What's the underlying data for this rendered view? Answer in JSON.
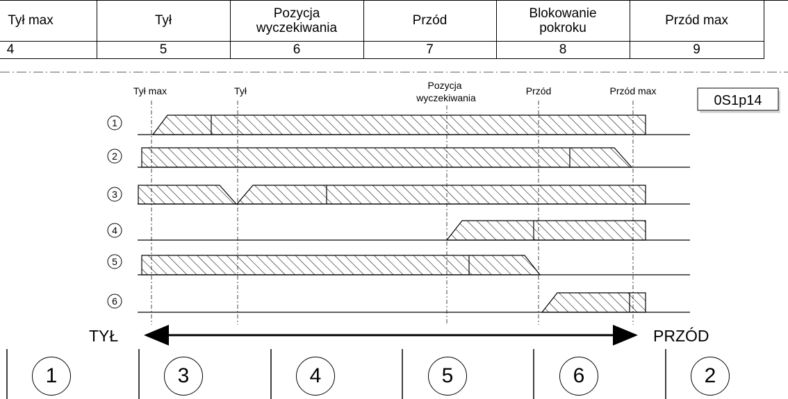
{
  "header_table": {
    "columns": [
      {
        "title": "Tył max",
        "number": "4"
      },
      {
        "title": "Tył",
        "number": "5"
      },
      {
        "title": "Pozycja\nwyczekiwania",
        "number": "6"
      },
      {
        "title": "Przód",
        "number": "7"
      },
      {
        "title": "Blokowanie\npokroku",
        "number": "8"
      },
      {
        "title": "Przód max",
        "number": "9"
      }
    ]
  },
  "diagram": {
    "code": "0S1p14",
    "positions": [
      "Tył max",
      "Tył",
      "Pozycja\nwyczekiwania",
      "Przód",
      "Przód max"
    ],
    "rows": [
      "1",
      "2",
      "3",
      "4",
      "5",
      "6"
    ],
    "direction_left": "TYŁ",
    "direction_right": "PRZÓD"
  },
  "bottom_sections": [
    "1",
    "3",
    "4",
    "5",
    "6",
    "2"
  ]
}
